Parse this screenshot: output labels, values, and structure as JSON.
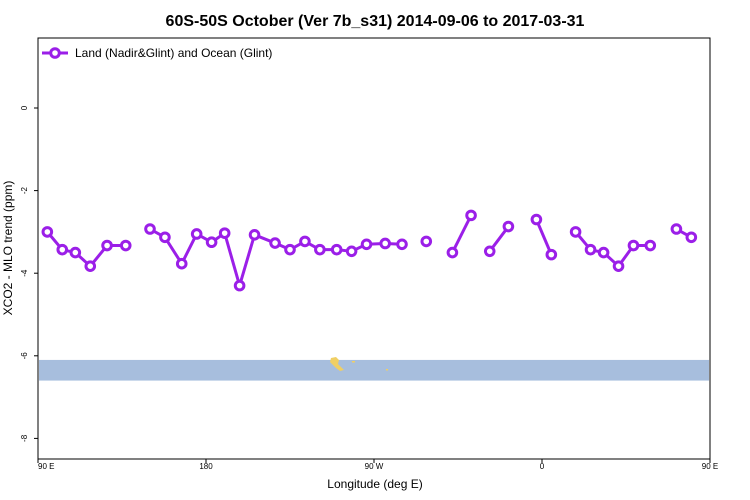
{
  "chart_data": {
    "type": "line",
    "title": "60S-50S October (Ver 7b_s31)   2014-09-06 to 2017-03-31",
    "xlabel": "Longitude (deg E)",
    "ylabel": "XCO2 - MLO trend (ppm)",
    "xlim": [
      90,
      450
    ],
    "ylim": [
      -8.3,
      1.7
    ],
    "x_ticks": [
      {
        "value": 90,
        "label": "90 E"
      },
      {
        "value": 180,
        "label": "180"
      },
      {
        "value": 270,
        "label": "90 W"
      },
      {
        "value": 360,
        "label": "0"
      },
      {
        "value": 450,
        "label": "90 E"
      },
      {
        "value": 540,
        "label": "180"
      }
    ],
    "y_ticks": [
      {
        "value": 0,
        "label": "0"
      },
      {
        "value": -2,
        "label": "-2"
      },
      {
        "value": -4,
        "label": "-4"
      },
      {
        "value": -6,
        "label": "-6"
      },
      {
        "value": -8,
        "label": "-8"
      }
    ],
    "legend": {
      "position": "top-left"
    },
    "series": [
      {
        "name": "Land (Nadir&Glint) and Ocean (Glint)",
        "color": "#9b1fe8",
        "segments": [
          [
            [
              95,
              -3.0
            ],
            [
              103,
              -3.43
            ],
            [
              110,
              -3.5
            ],
            [
              118,
              -3.83
            ],
            [
              127,
              -3.33
            ],
            [
              137,
              -3.33
            ]
          ],
          [
            [
              150,
              -2.93
            ],
            [
              158,
              -3.13
            ],
            [
              167,
              -3.77
            ],
            [
              175,
              -3.05
            ],
            [
              183,
              -3.25
            ],
            [
              190,
              -3.03
            ],
            [
              198,
              -4.3
            ],
            [
              206,
              -3.07
            ],
            [
              217,
              -3.27
            ],
            [
              225,
              -3.43
            ],
            [
              233,
              -3.23
            ],
            [
              241,
              -3.43
            ],
            [
              250,
              -3.43
            ],
            [
              258,
              -3.47
            ],
            [
              266,
              -3.3
            ],
            [
              276,
              -3.28
            ],
            [
              285,
              -3.3
            ]
          ],
          [
            [
              298,
              -3.23
            ]
          ],
          [
            [
              312,
              -3.5
            ],
            [
              322,
              -2.6
            ]
          ],
          [
            [
              332,
              -3.47
            ],
            [
              342,
              -2.87
            ]
          ],
          [
            [
              357,
              -2.7
            ],
            [
              365,
              -3.55
            ]
          ],
          [
            [
              378,
              -3.0
            ],
            [
              386,
              -3.43
            ],
            [
              393,
              -3.5
            ],
            [
              401,
              -3.83
            ],
            [
              409,
              -3.33
            ],
            [
              418,
              -3.33
            ]
          ],
          [
            [
              432,
              -2.93
            ],
            [
              440,
              -3.13
            ]
          ]
        ]
      }
    ],
    "map_band": {
      "y_range": [
        -6.6,
        -6.1
      ],
      "ocean_color": "#a7bedd",
      "land_color": "#f0cf64"
    }
  }
}
